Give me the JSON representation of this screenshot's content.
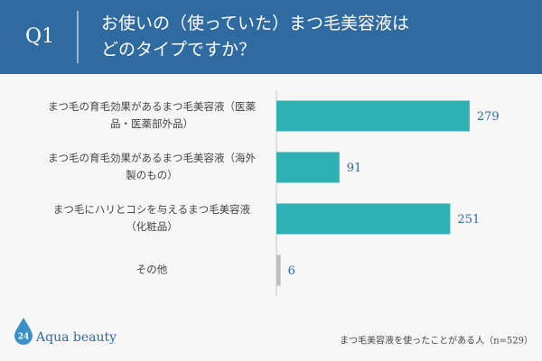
{
  "chart_data": {
    "type": "bar",
    "orientation": "horizontal",
    "question": "Q1",
    "title": [
      "お使いの（使っていた）まつ毛美容液は",
      "どのタイプですか？"
    ],
    "categories": [
      [
        "まつ毛の育毛効果があるまつ毛美容液（医薬",
        "品・医薬部外品）"
      ],
      [
        "まつ毛の育毛効果があるまつ毛美容液（海外",
        "製のもの）"
      ],
      [
        "まつ毛にハリとコシを与えるまつ毛美容液",
        "（化粧品）"
      ],
      [
        "その他"
      ]
    ],
    "values": [
      279,
      91,
      251,
      6
    ],
    "colors": [
      "#2fb0b4",
      "#2fb0b4",
      "#2fb0b4",
      "#bdbdbd"
    ],
    "xlim": [
      0,
      300
    ],
    "note": "まつ毛美容液を使ったことがある人（n=529）",
    "logo": {
      "number": "24",
      "name": "Aqua beauty"
    }
  }
}
